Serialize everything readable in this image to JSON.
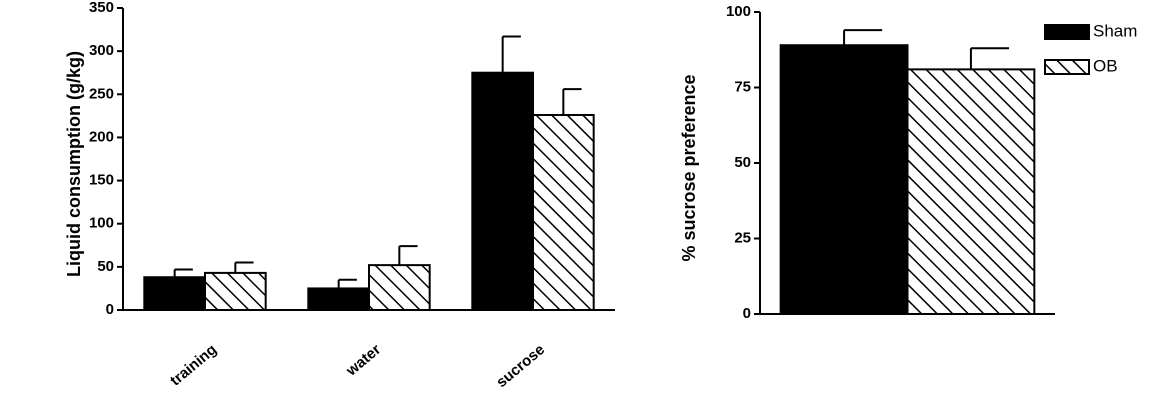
{
  "chart_data": [
    {
      "type": "bar",
      "ylabel": "Liquid consumption (g/kg)",
      "categories": [
        "training",
        "water",
        "sucrose"
      ],
      "series": [
        {
          "color": "#000000",
          "values": [
            38,
            25,
            275
          ],
          "errors": [
            9,
            10,
            42
          ]
        },
        {
          "color": "#ffffff",
          "pattern": "hatch",
          "values": [
            43,
            52,
            226
          ],
          "errors": [
            12,
            22,
            30
          ]
        }
      ],
      "ylim": [
        0,
        350
      ],
      "yticks": [
        0,
        50,
        100,
        150,
        200,
        250,
        300,
        350
      ]
    },
    {
      "type": "bar",
      "ylabel": "% sucrose preference",
      "categories": [
        null
      ],
      "series": [
        {
          "name": "Sham",
          "color": "#000000",
          "values": [
            89
          ],
          "errors": [
            5
          ]
        },
        {
          "name": "OB",
          "color": "#ffffff",
          "pattern": "hatch",
          "values": [
            81
          ],
          "errors": [
            7
          ]
        }
      ],
      "ylim": [
        0,
        100
      ],
      "yticks": [
        0,
        25,
        50,
        75,
        100
      ],
      "legend": "upper right"
    }
  ]
}
